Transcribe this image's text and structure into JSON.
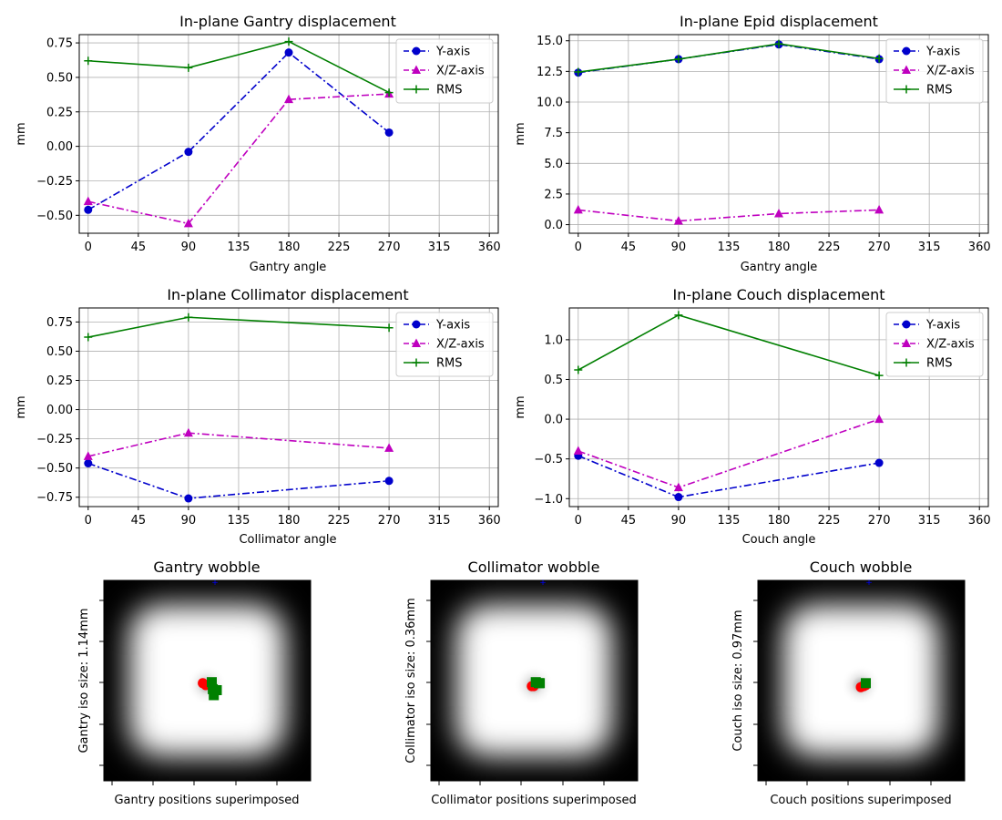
{
  "colors": {
    "y_axis": "#0000cc",
    "xz_axis": "#bf00bf",
    "rms": "#007f00",
    "grid": "#b0b0b0",
    "red_marker": "#ff0000",
    "green_marker": "#008000",
    "blue_marker": "#0000ff"
  },
  "chart_data": [
    {
      "type": "line",
      "title": "In-plane Gantry displacement",
      "xlabel": "Gantry angle",
      "ylabel": "mm",
      "xlim": [
        -8,
        368
      ],
      "ylim": [
        -0.63,
        0.81
      ],
      "xticks": [
        0,
        45,
        90,
        135,
        180,
        225,
        270,
        315,
        360
      ],
      "yticks": [
        -0.5,
        -0.25,
        0.0,
        0.25,
        0.5,
        0.75
      ],
      "ytick_labels": [
        "−0.50",
        "−0.25",
        "0.00",
        "0.25",
        "0.50",
        "0.75"
      ],
      "legend": "top-right",
      "x": [
        0,
        90,
        180,
        270
      ],
      "series": [
        {
          "name": "Y-axis",
          "key": "y",
          "values": [
            -0.46,
            -0.04,
            0.68,
            0.1
          ]
        },
        {
          "name": "X/Z-axis",
          "key": "xz",
          "values": [
            -0.4,
            -0.56,
            0.34,
            0.38
          ]
        },
        {
          "name": "RMS",
          "key": "rms",
          "values": [
            0.62,
            0.57,
            0.76,
            0.39
          ]
        }
      ]
    },
    {
      "type": "line",
      "title": "In-plane Epid displacement",
      "xlabel": "Gantry angle",
      "ylabel": "mm",
      "xlim": [
        -8,
        368
      ],
      "ylim": [
        -0.7,
        15.5
      ],
      "xticks": [
        0,
        45,
        90,
        135,
        180,
        225,
        270,
        315,
        360
      ],
      "yticks": [
        0,
        2.5,
        5,
        7.5,
        10,
        12.5,
        15
      ],
      "ytick_labels": [
        "0.0",
        "2.5",
        "5.0",
        "7.5",
        "10.0",
        "12.5",
        "15.0"
      ],
      "legend": "top-right",
      "x": [
        0,
        90,
        180,
        270
      ],
      "series": [
        {
          "name": "Y-axis",
          "key": "y",
          "values": [
            12.4,
            13.5,
            14.7,
            13.5
          ]
        },
        {
          "name": "X/Z-axis",
          "key": "xz",
          "values": [
            1.2,
            0.3,
            0.9,
            1.2
          ]
        },
        {
          "name": "RMS",
          "key": "rms",
          "values": [
            12.45,
            13.5,
            14.75,
            13.55
          ]
        }
      ]
    },
    {
      "type": "line",
      "title": "In-plane Collimator displacement",
      "xlabel": "Collimator angle",
      "ylabel": "mm",
      "xlim": [
        -8,
        368
      ],
      "ylim": [
        -0.83,
        0.87
      ],
      "xticks": [
        0,
        45,
        90,
        135,
        180,
        225,
        270,
        315,
        360
      ],
      "yticks": [
        -0.75,
        -0.5,
        -0.25,
        0.0,
        0.25,
        0.5,
        0.75
      ],
      "ytick_labels": [
        "−0.75",
        "−0.50",
        "−0.25",
        "0.00",
        "0.25",
        "0.50",
        "0.75"
      ],
      "legend": "top-right",
      "x": [
        0,
        90,
        270
      ],
      "series": [
        {
          "name": "Y-axis",
          "key": "y",
          "values": [
            -0.46,
            -0.76,
            -0.61
          ]
        },
        {
          "name": "X/Z-axis",
          "key": "xz",
          "values": [
            -0.4,
            -0.2,
            -0.33
          ]
        },
        {
          "name": "RMS",
          "key": "rms",
          "values": [
            0.62,
            0.79,
            0.7
          ]
        }
      ]
    },
    {
      "type": "line",
      "title": "In-plane Couch displacement",
      "xlabel": "Couch angle",
      "ylabel": "mm",
      "xlim": [
        -8,
        368
      ],
      "ylim": [
        -1.1,
        1.4
      ],
      "xticks": [
        0,
        45,
        90,
        135,
        180,
        225,
        270,
        315,
        360
      ],
      "yticks": [
        -1.0,
        -0.5,
        0.0,
        0.5,
        1.0
      ],
      "ytick_labels": [
        "−1.0",
        "−0.5",
        "0.0",
        "0.5",
        "1.0"
      ],
      "legend": "top-right",
      "x": [
        0,
        90,
        270
      ],
      "series": [
        {
          "name": "Y-axis",
          "key": "y",
          "values": [
            -0.46,
            -0.98,
            -0.55
          ]
        },
        {
          "name": "X/Z-axis",
          "key": "xz",
          "values": [
            -0.4,
            -0.86,
            0.0
          ]
        },
        {
          "name": "RMS",
          "key": "rms",
          "values": [
            0.62,
            1.31,
            0.55
          ]
        }
      ]
    }
  ],
  "wobble": [
    {
      "title": "Gantry wobble",
      "ylabel": "Gantry iso size: 1.14mm",
      "xlabel": "Gantry positions superimposed",
      "red": [
        [
          -0.04,
          0.02
        ],
        [
          -0.01,
          0.0
        ]
      ],
      "green": [
        [
          0.05,
          0.03
        ],
        [
          0.1,
          -0.05
        ],
        [
          0.06,
          -0.04
        ],
        [
          0.07,
          -0.1
        ]
      ]
    },
    {
      "title": "Collimator wobble",
      "ylabel": "Collimator iso size: 0.36mm",
      "xlabel": "Collimator positions superimposed",
      "red": [
        [
          -0.02,
          -0.01
        ],
        [
          0.0,
          -0.01
        ]
      ],
      "green": [
        [
          0.05,
          0.02
        ],
        [
          0.02,
          0.03
        ],
        [
          0.06,
          0.02
        ]
      ]
    },
    {
      "title": "Couch wobble",
      "ylabel": "Couch iso size: 0.97mm",
      "xlabel": "Couch positions superimposed",
      "red": [
        [
          0.0,
          -0.02
        ],
        [
          0.02,
          -0.01
        ],
        [
          0.05,
          0.0
        ],
        [
          0.03,
          -0.01
        ]
      ],
      "green": [
        [
          0.05,
          0.02
        ]
      ]
    }
  ]
}
